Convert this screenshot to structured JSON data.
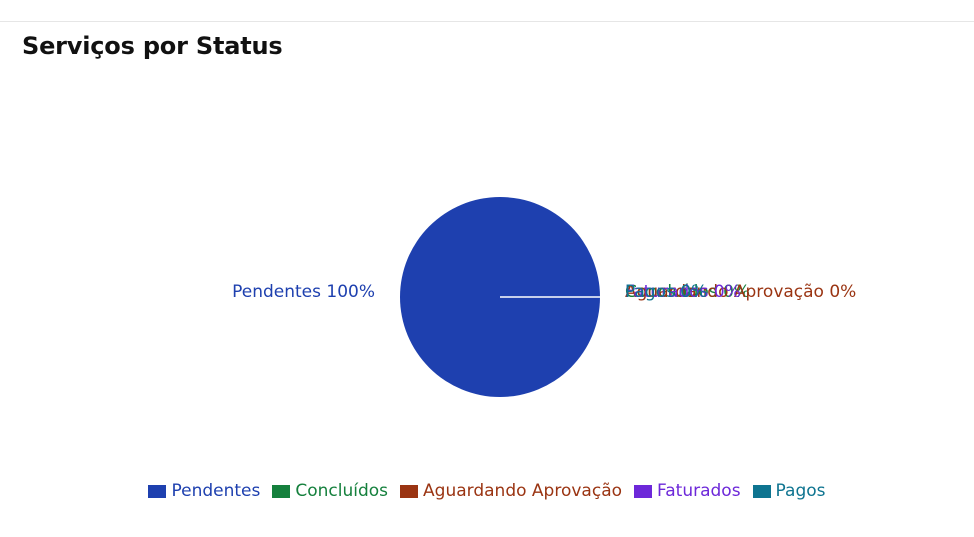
{
  "chart_data": {
    "type": "pie",
    "title": "Serviços por Status",
    "categories": [
      "Pendentes",
      "Concluídos",
      "Aguardando Aprovação",
      "Faturados",
      "Pagos"
    ],
    "values": [
      100,
      0,
      0,
      0,
      0
    ],
    "unit": "%",
    "colors": [
      "#1e40af",
      "#15803d",
      "#9a3412",
      "#6d28d9",
      "#0e7490"
    ],
    "slice_labels": [
      "Pendentes 100%",
      "Concluídos 0%",
      "Aguardando Aprovação 0%",
      "Faturados 0%",
      "Pagos 0%"
    ],
    "legend": {
      "position": "bottom",
      "entries": [
        "Pendentes",
        "Concluídos",
        "Aguardando Aprovação",
        "Faturados",
        "Pagos"
      ]
    }
  }
}
